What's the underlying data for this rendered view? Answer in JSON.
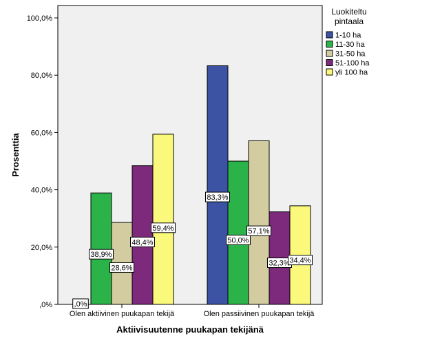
{
  "chart_data": {
    "type": "bar",
    "xlabel": "Aktiivisuutenne puukapan tekijänä",
    "ylabel": "Prosenttia",
    "ylim": [
      0,
      100
    ],
    "yticks": [
      "100,0%",
      "80,0%",
      "60,0%",
      "40,0%",
      "20,0%",
      ",0%"
    ],
    "categories": [
      "Olen aktiivinen puukapan tekijä",
      "Olen passiivinen puukapan tekijä"
    ],
    "legend": {
      "title": "Luokiteltu pintaala",
      "placement": "right"
    },
    "grid": false,
    "series": [
      {
        "name": "1-10 ha",
        "color": "#3c53a4",
        "values": [
          0.0,
          83.3
        ],
        "labels": [
          ",0%",
          "83,3%"
        ]
      },
      {
        "name": "11-30 ha",
        "color": "#2bb34a",
        "values": [
          38.9,
          50.0
        ],
        "labels": [
          "38,9%",
          "50,0%"
        ]
      },
      {
        "name": "31-50 ha",
        "color": "#d3cca1",
        "values": [
          28.6,
          57.1
        ],
        "labels": [
          "28,6%",
          "57,1%"
        ]
      },
      {
        "name": "51-100 ha",
        "color": "#7d2a7c",
        "values": [
          48.4,
          32.3
        ],
        "labels": [
          "48,4%",
          "32,3%"
        ]
      },
      {
        "name": "yli 100 ha",
        "color": "#fbf97b",
        "values": [
          59.4,
          34.4
        ],
        "labels": [
          "59,4%",
          "34,4%"
        ]
      }
    ]
  }
}
